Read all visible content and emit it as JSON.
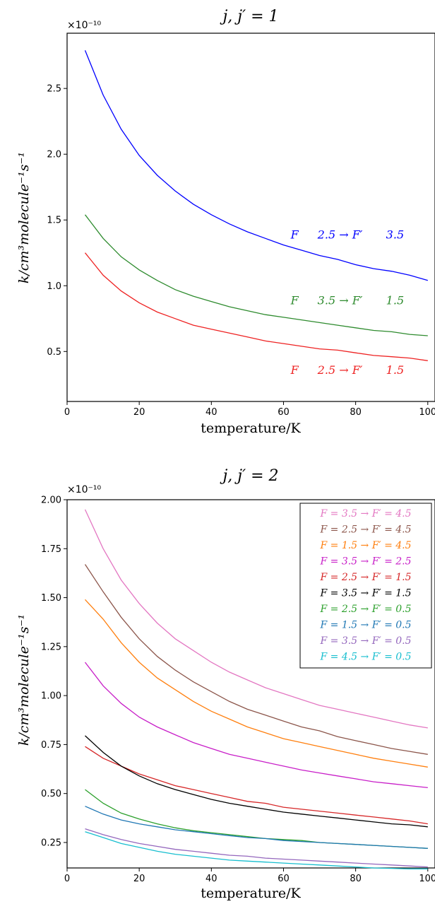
{
  "chart_data": [
    {
      "type": "line",
      "title": "j, j′ = 1",
      "xlabel": "temperature/K",
      "ylabel": "k/cm³molecule⁻¹s⁻¹",
      "y_multiplier": "×10⁻¹⁰",
      "xlim": [
        0,
        102
      ],
      "ylim": [
        0.12,
        2.92
      ],
      "xticks": [
        "0",
        "20",
        "40",
        "60",
        "80",
        "100"
      ],
      "yticks": [
        "0.5",
        "1.0",
        "1.5",
        "2.0",
        "2.5"
      ],
      "x": [
        5,
        10,
        15,
        20,
        25,
        30,
        35,
        40,
        45,
        50,
        55,
        60,
        65,
        70,
        75,
        80,
        85,
        90,
        95,
        100
      ],
      "legend": "none",
      "grid": false,
      "series": [
        {
          "name": "F   2.5 → F′   3.5",
          "color": "#0000ff",
          "values": [
            2.79,
            2.45,
            2.19,
            1.99,
            1.84,
            1.72,
            1.62,
            1.54,
            1.47,
            1.41,
            1.36,
            1.31,
            1.27,
            1.23,
            1.2,
            1.16,
            1.13,
            1.11,
            1.08,
            1.04
          ]
        },
        {
          "name": "F   3.5 → F′   1.5",
          "color": "#2e8b2e",
          "values": [
            1.54,
            1.36,
            1.22,
            1.12,
            1.04,
            0.97,
            0.92,
            0.88,
            0.84,
            0.81,
            0.78,
            0.76,
            0.74,
            0.72,
            0.7,
            0.68,
            0.66,
            0.65,
            0.63,
            0.62
          ]
        },
        {
          "name": "F   2.5 → F′   1.5",
          "color": "#ee2222",
          "values": [
            1.25,
            1.08,
            0.96,
            0.87,
            0.8,
            0.75,
            0.7,
            0.67,
            0.64,
            0.61,
            0.58,
            0.56,
            0.54,
            0.52,
            0.51,
            0.49,
            0.47,
            0.46,
            0.45,
            0.43
          ]
        }
      ],
      "annotations": [
        {
          "parts": [
            "F",
            "2.5 → F′",
            "3.5"
          ],
          "color": "#0000ff",
          "x": 62,
          "y": 1.36
        },
        {
          "parts": [
            "F",
            "3.5 → F′",
            "1.5"
          ],
          "color": "#2e8b2e",
          "x": 62,
          "y": 0.86
        },
        {
          "parts": [
            "F",
            "2.5 → F′",
            "1.5"
          ],
          "color": "#ee2222",
          "x": 62,
          "y": 0.33
        }
      ]
    },
    {
      "type": "line",
      "title": "j, j′ = 2",
      "xlabel": "temperature/K",
      "ylabel": "k/cm³molecule⁻¹s⁻¹",
      "y_multiplier": "×10⁻¹⁰",
      "xlim": [
        0,
        102
      ],
      "ylim": [
        0.12,
        2.0
      ],
      "xticks": [
        "0",
        "20",
        "40",
        "60",
        "80",
        "100"
      ],
      "yticks": [
        "0.25",
        "0.50",
        "0.75",
        "1.00",
        "1.25",
        "1.50",
        "1.75",
        "2.00"
      ],
      "x": [
        5,
        10,
        15,
        20,
        25,
        30,
        35,
        40,
        45,
        50,
        55,
        60,
        65,
        70,
        75,
        80,
        85,
        90,
        95,
        100
      ],
      "legend": "top-right",
      "grid": false,
      "series": [
        {
          "name": "F = 3.5 → F′ = 4.5",
          "color": "#e377c2",
          "values": [
            1.95,
            1.75,
            1.59,
            1.47,
            1.37,
            1.29,
            1.23,
            1.17,
            1.12,
            1.08,
            1.04,
            1.01,
            0.98,
            0.95,
            0.93,
            0.91,
            0.89,
            0.87,
            0.85,
            0.835
          ]
        },
        {
          "name": "F = 2.5 → F′ = 4.5",
          "color": "#8c564b",
          "values": [
            1.67,
            1.53,
            1.4,
            1.29,
            1.2,
            1.13,
            1.07,
            1.02,
            0.97,
            0.93,
            0.9,
            0.87,
            0.84,
            0.82,
            0.79,
            0.77,
            0.75,
            0.73,
            0.715,
            0.7
          ]
        },
        {
          "name": "F = 1.5 → F′ = 4.5",
          "color": "#ff7f0e",
          "values": [
            1.49,
            1.39,
            1.27,
            1.17,
            1.09,
            1.03,
            0.97,
            0.92,
            0.88,
            0.84,
            0.81,
            0.78,
            0.76,
            0.74,
            0.72,
            0.7,
            0.68,
            0.665,
            0.65,
            0.635
          ]
        },
        {
          "name": "F = 3.5 → F′ = 2.5",
          "color": "#c81ec8",
          "values": [
            1.17,
            1.05,
            0.96,
            0.89,
            0.84,
            0.8,
            0.76,
            0.73,
            0.7,
            0.68,
            0.66,
            0.64,
            0.62,
            0.605,
            0.59,
            0.575,
            0.56,
            0.55,
            0.54,
            0.53
          ]
        },
        {
          "name": "F = 2.5 → F′ = 1.5",
          "color": "#d62728",
          "values": [
            0.74,
            0.68,
            0.64,
            0.6,
            0.57,
            0.54,
            0.52,
            0.5,
            0.48,
            0.46,
            0.45,
            0.43,
            0.42,
            0.41,
            0.4,
            0.39,
            0.38,
            0.37,
            0.36,
            0.345
          ]
        },
        {
          "name": "F = 3.5 → F′ = 1.5",
          "color": "#000000",
          "values": [
            0.795,
            0.71,
            0.64,
            0.59,
            0.55,
            0.52,
            0.495,
            0.47,
            0.45,
            0.435,
            0.42,
            0.405,
            0.395,
            0.385,
            0.375,
            0.365,
            0.355,
            0.345,
            0.34,
            0.33
          ]
        },
        {
          "name": "F = 2.5 → F′ = 0.5",
          "color": "#2ca02c",
          "values": [
            0.52,
            0.45,
            0.4,
            0.37,
            0.345,
            0.325,
            0.31,
            0.3,
            0.29,
            0.28,
            0.27,
            0.265,
            0.26,
            0.25,
            0.245,
            0.24,
            0.235,
            0.23,
            0.225,
            0.22
          ]
        },
        {
          "name": "F = 1.5 → F′ = 0.5",
          "color": "#1f77b4",
          "values": [
            0.435,
            0.395,
            0.365,
            0.345,
            0.33,
            0.315,
            0.305,
            0.295,
            0.285,
            0.275,
            0.27,
            0.26,
            0.255,
            0.25,
            0.245,
            0.24,
            0.235,
            0.23,
            0.225,
            0.22
          ]
        },
        {
          "name": "F = 3.5 → F′ = 0.5",
          "color": "#9467bd",
          "values": [
            0.32,
            0.29,
            0.265,
            0.245,
            0.23,
            0.215,
            0.205,
            0.195,
            0.185,
            0.18,
            0.17,
            0.165,
            0.16,
            0.155,
            0.15,
            0.145,
            0.14,
            0.135,
            0.13,
            0.125
          ]
        },
        {
          "name": "F = 4.5 → F′ = 0.5",
          "color": "#17becf",
          "values": [
            0.305,
            0.275,
            0.245,
            0.225,
            0.205,
            0.19,
            0.18,
            0.17,
            0.16,
            0.155,
            0.15,
            0.145,
            0.14,
            0.135,
            0.13,
            0.125,
            0.12,
            0.118,
            0.115,
            0.115
          ]
        }
      ]
    }
  ]
}
